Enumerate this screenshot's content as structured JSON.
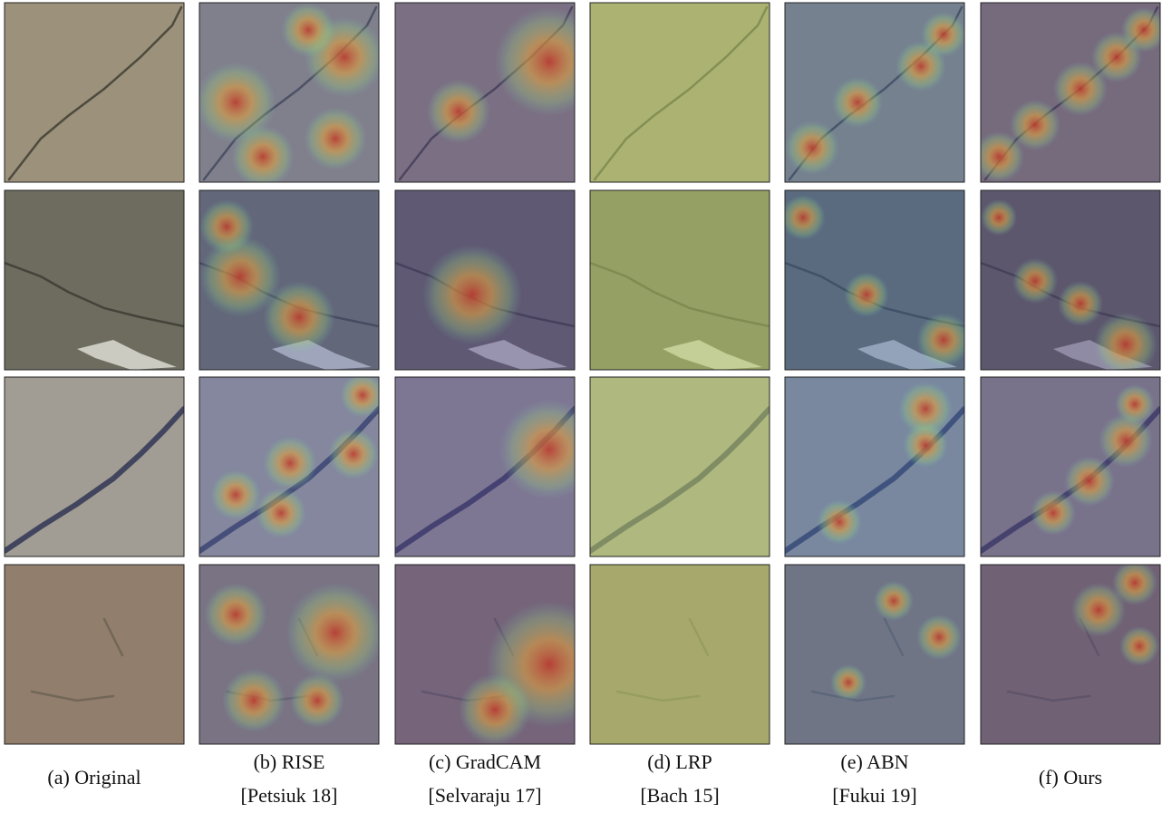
{
  "columns": [
    {
      "label": "(a) Original"
    },
    {
      "label": "(b) RISE",
      "citation": "[Petsiuk 18]"
    },
    {
      "label": "(c) GradCAM",
      "citation": "[Selvaraju 17]"
    },
    {
      "label": "(d) LRP",
      "citation": "[Bach 15]"
    },
    {
      "label": "(e) ABN",
      "citation": "[Fukui 19]"
    },
    {
      "label": "(f) Ours"
    }
  ]
}
